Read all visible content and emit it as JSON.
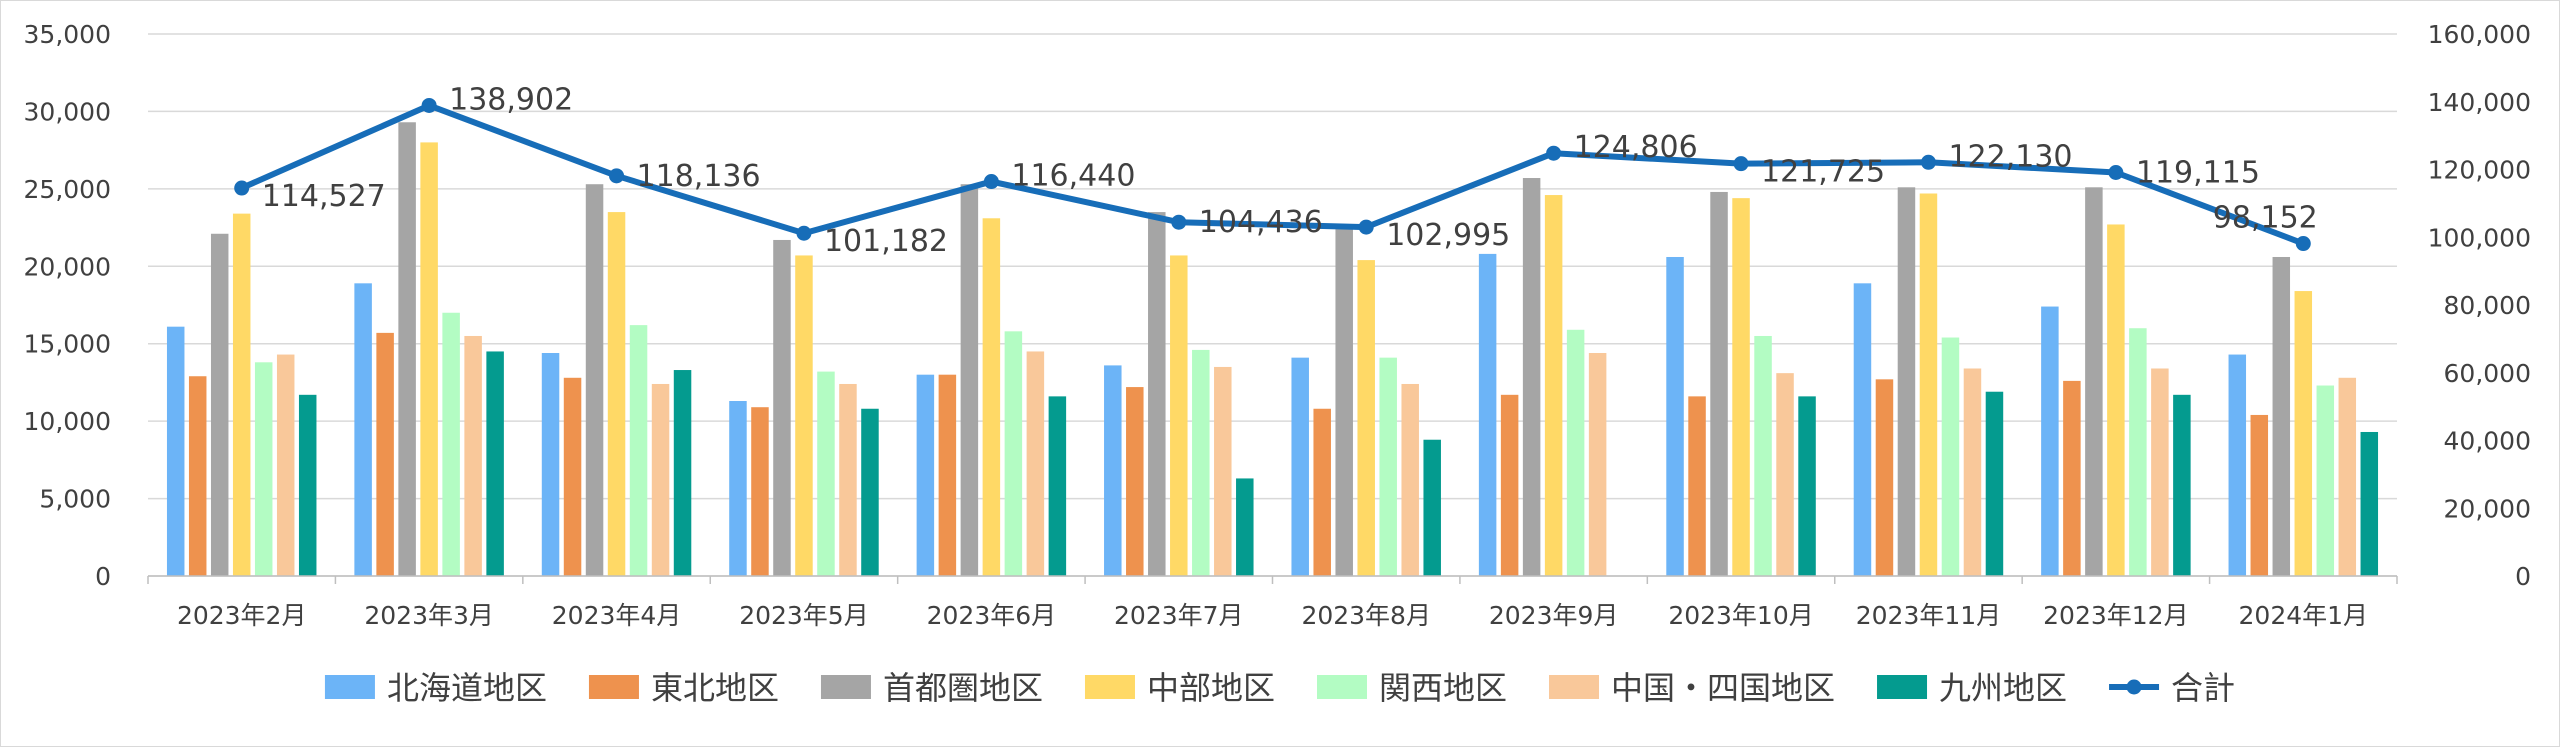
{
  "chart_data": {
    "type": "bar",
    "categories": [
      "2023年2月",
      "2023年3月",
      "2023年4月",
      "2023年5月",
      "2023年6月",
      "2023年7月",
      "2023年8月",
      "2023年9月",
      "2023年10月",
      "2023年11月",
      "2023年12月",
      "2024年1月"
    ],
    "y_left": {
      "min": 0,
      "max": 35000,
      "step": 5000,
      "tick_labels": [
        "0",
        "5,000",
        "10,000",
        "15,000",
        "20,000",
        "25,000",
        "30,000",
        "35,000"
      ]
    },
    "y_right": {
      "min": 0,
      "max": 160000,
      "step": 20000,
      "tick_labels": [
        "0",
        "20,000",
        "40,000",
        "60,000",
        "80,000",
        "100,000",
        "120,000",
        "140,000",
        "160,000"
      ]
    },
    "grid": true,
    "legend_position": "bottom",
    "series": [
      {
        "name": "北海道地区",
        "color": "#6cb4f7",
        "values": [
          16100,
          18900,
          14400,
          11300,
          13000,
          13600,
          14100,
          20800,
          20600,
          18900,
          17400,
          14300
        ]
      },
      {
        "name": "東北地区",
        "color": "#ee924e",
        "values": [
          12900,
          15700,
          12800,
          10900,
          13000,
          12200,
          10800,
          11700,
          11600,
          12700,
          12600,
          10400
        ]
      },
      {
        "name": "首都圏地区",
        "color": "#a5a5a5",
        "values": [
          22100,
          29300,
          25300,
          21700,
          25300,
          23500,
          22400,
          25700,
          24800,
          25100,
          25100,
          20600
        ]
      },
      {
        "name": "中部地区",
        "color": "#ffd966",
        "values": [
          23400,
          28000,
          23500,
          20700,
          23100,
          20700,
          20400,
          24600,
          24400,
          24700,
          22700,
          18400
        ]
      },
      {
        "name": "関西地区",
        "color": "#b3fcc3",
        "values": [
          13800,
          17000,
          16200,
          13200,
          15800,
          14600,
          14100,
          15900,
          15500,
          15400,
          16000,
          12300
        ]
      },
      {
        "name": "中国・四国地区",
        "color": "#f9c89a",
        "values": [
          14300,
          15500,
          12400,
          12400,
          14500,
          13500,
          12400,
          14400,
          13100,
          13400,
          13400,
          12800
        ]
      },
      {
        "name": "九州地区",
        "color": "#049b8f",
        "values": [
          11700,
          14500,
          13300,
          10800,
          11600,
          6300,
          8800,
          null,
          11600,
          11900,
          11700,
          9300
        ]
      }
    ],
    "line_series": {
      "name": "合計",
      "color": "#176db8",
      "axis": "right",
      "values": [
        114527,
        138902,
        118136,
        101182,
        116440,
        104436,
        102995,
        124806,
        121725,
        122130,
        119115,
        98152
      ],
      "labels": [
        "114,527",
        "138,902",
        "118,136",
        "101,182",
        "116,440",
        "104,436",
        "102,995",
        "124,806",
        "121,725",
        "122,130",
        "119,115",
        "98,152"
      ]
    }
  }
}
